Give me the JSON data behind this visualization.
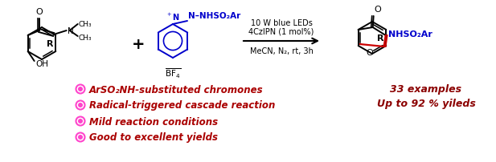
{
  "bg_color": "#ffffff",
  "black": "#000000",
  "blue": "#0000cc",
  "red": "#cc0000",
  "dark_red": "#8b0000",
  "magenta": "#ff44cc",
  "bullet_text_color": "#aa0000",
  "bullet_items": [
    "ArSO₂NH-substituted chromones",
    "Radical-triggered cascade reaction",
    "Mild reaction conditions",
    "Good to excellent yields"
  ],
  "conditions_lines": [
    "10 W blue LEDs",
    "4CzIPN (1 mol%)",
    "MeCN, N₂, rt, 3h"
  ],
  "result_lines": [
    "33 examples",
    "Up to 92 % yileds"
  ],
  "figsize": [
    6.17,
    2.03
  ],
  "dpi": 100
}
